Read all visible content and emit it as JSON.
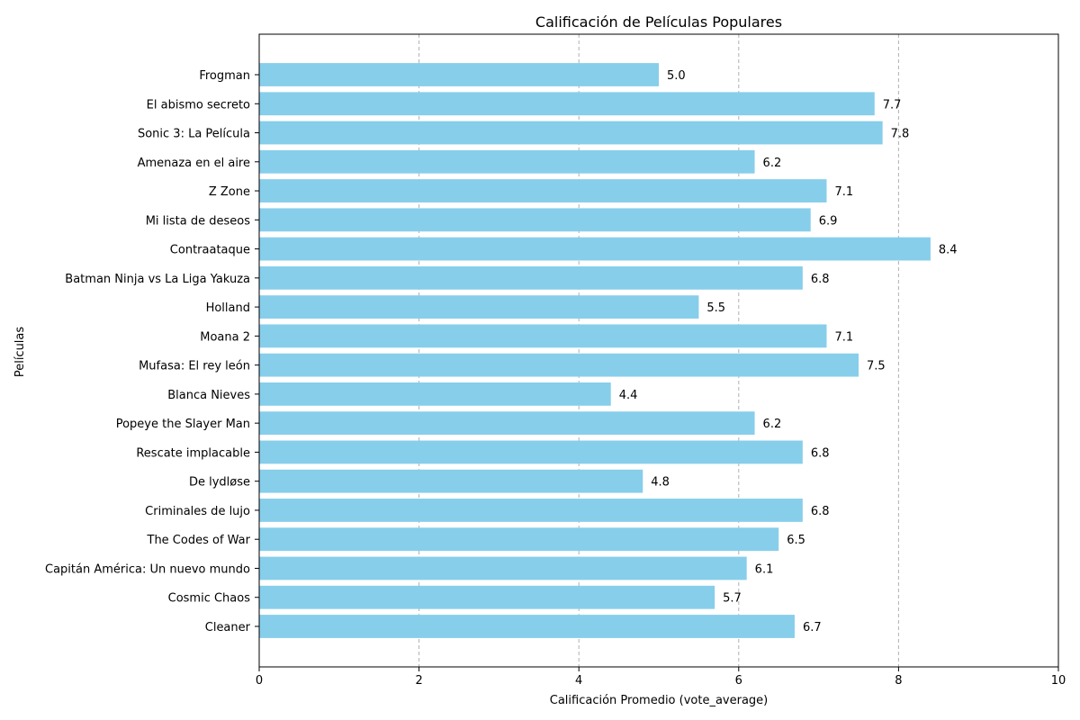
{
  "chart_data": {
    "type": "bar",
    "orientation": "horizontal",
    "title": "Calificación de Películas Populares",
    "xlabel": "Calificación Promedio (vote_average)",
    "ylabel": "Películas",
    "xlim": [
      0,
      10
    ],
    "xticks": [
      "0",
      "2",
      "4",
      "6",
      "8",
      "10"
    ],
    "grid": "x-dashed",
    "bar_color": "#87ceeb",
    "categories": [
      "Frogman",
      "El abismo secreto",
      "Sonic 3: La Película",
      "Amenaza en el aire",
      "Z Zone",
      "Mi lista de deseos",
      "Contraataque",
      "Batman Ninja vs La Liga Yakuza",
      "Holland",
      "Moana 2",
      "Mufasa: El rey león",
      "Blanca Nieves",
      "Popeye the Slayer Man",
      "Rescate implacable",
      "De lydløse",
      "Criminales de lujo",
      "The Codes of War",
      "Capitán América: Un nuevo mundo",
      "Cosmic Chaos",
      "Cleaner"
    ],
    "values": [
      5.0,
      7.7,
      7.8,
      6.2,
      7.1,
      6.9,
      8.4,
      6.8,
      5.5,
      7.1,
      7.5,
      4.4,
      6.2,
      6.8,
      4.8,
      6.8,
      6.5,
      6.1,
      5.7,
      6.7
    ],
    "value_labels": [
      "5.0",
      "7.7",
      "7.8",
      "6.2",
      "7.1",
      "6.9",
      "8.4",
      "6.8",
      "5.5",
      "7.1",
      "7.5",
      "4.4",
      "6.2",
      "6.8",
      "4.8",
      "6.8",
      "6.5",
      "6.1",
      "5.7",
      "6.7"
    ]
  }
}
